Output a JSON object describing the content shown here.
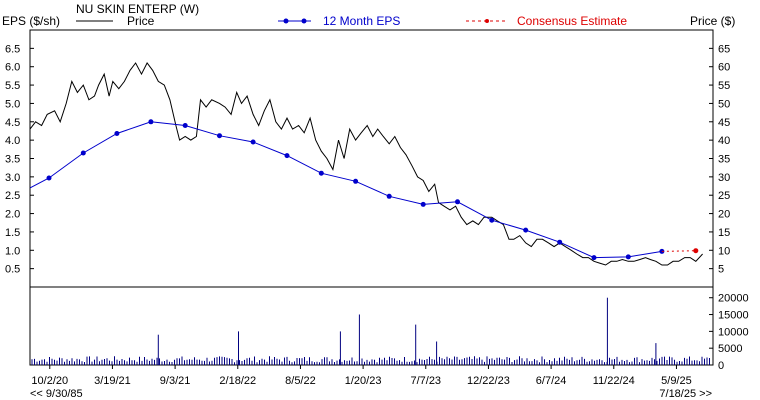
{
  "chart_data": {
    "type": "line",
    "company": "NU SKIN ENTERP (W)",
    "left_axis_title": "EPS ($/sh)",
    "right_axis_title": "Price ($)",
    "legend": {
      "price": "Price",
      "eps": "12 Month EPS",
      "consensus": "Consensus Estimate"
    },
    "colors": {
      "price": "#000000",
      "eps": "#0000cc",
      "consensus": "#dd0000",
      "volume": "#000080",
      "frame": "#000000",
      "consensus_label": "#dd0000"
    },
    "eps_axis": {
      "ticks": [
        0.5,
        1.0,
        1.5,
        2.0,
        2.5,
        3.0,
        3.5,
        4.0,
        4.5,
        5.0,
        5.5,
        6.0,
        6.5
      ],
      "tick_labels": [
        "0.5",
        "1.0",
        "1.5",
        "2.0",
        "2.5",
        "3.0",
        "3.5",
        "4.0",
        "4.5",
        "5.0",
        "5.5",
        "6.0",
        "6.5"
      ],
      "range": [
        0,
        7
      ]
    },
    "price_axis": {
      "ticks": [
        5,
        10,
        15,
        20,
        25,
        30,
        35,
        40,
        45,
        50,
        55,
        60,
        65
      ],
      "tick_labels": [
        "5",
        "10",
        "15",
        "20",
        "25",
        "30",
        "35",
        "40",
        "45",
        "50",
        "55",
        "60",
        "65"
      ],
      "range": [
        0,
        70
      ]
    },
    "volume_axis": {
      "ticks": [
        5000,
        10000,
        15000,
        20000
      ],
      "tick_labels": [
        "5000",
        "10000",
        "15000",
        "20000"
      ],
      "zero_label": "0",
      "range": [
        0,
        22000
      ]
    },
    "x_axis": {
      "range": [
        "2020-08-10",
        "2025-08-15"
      ],
      "ticks": [
        "2020-10-02",
        "2021-03-19",
        "2021-09-03",
        "2022-02-18",
        "2022-08-05",
        "2023-01-20",
        "2023-07-07",
        "2023-12-22",
        "2024-06-07",
        "2024-11-22",
        "2025-05-09"
      ],
      "tick_labels": [
        "10/2/20",
        "3/19/21",
        "9/3/21",
        "2/18/22",
        "8/5/22",
        "1/20/23",
        "7/7/23",
        "12/22/23",
        "6/7/24",
        "11/22/24",
        "5/9/25"
      ],
      "start_note": "<< 9/30/85",
      "end_note": "7/18/25 >>"
    },
    "eps_series": {
      "name": "12 Month EPS",
      "points": [
        [
          "2020-08-10",
          2.7
        ],
        [
          "2020-09-30",
          2.97
        ],
        [
          "2020-12-31",
          3.65
        ],
        [
          "2021-03-31",
          4.18
        ],
        [
          "2021-06-30",
          4.5
        ],
        [
          "2021-09-30",
          4.4
        ],
        [
          "2021-12-31",
          4.12
        ],
        [
          "2022-03-31",
          3.95
        ],
        [
          "2022-06-30",
          3.58
        ],
        [
          "2022-09-30",
          3.1
        ],
        [
          "2022-12-31",
          2.88
        ],
        [
          "2023-03-31",
          2.47
        ],
        [
          "2023-06-30",
          2.25
        ],
        [
          "2023-09-30",
          2.32
        ],
        [
          "2023-12-31",
          1.82
        ],
        [
          "2024-03-31",
          1.55
        ],
        [
          "2024-06-30",
          1.22
        ],
        [
          "2024-09-30",
          0.8
        ],
        [
          "2024-12-31",
          0.82
        ],
        [
          "2025-03-31",
          0.97
        ]
      ]
    },
    "consensus_series": {
      "name": "Consensus Estimate",
      "points": [
        [
          "2025-03-31",
          0.97
        ],
        [
          "2025-06-30",
          0.99
        ]
      ]
    },
    "price_series": {
      "name": "Price",
      "points": [
        [
          "2020-08-10",
          43
        ],
        [
          "2020-08-25",
          45
        ],
        [
          "2020-09-10",
          44
        ],
        [
          "2020-09-25",
          47
        ],
        [
          "2020-10-15",
          48
        ],
        [
          "2020-10-30",
          45
        ],
        [
          "2020-11-15",
          50
        ],
        [
          "2020-11-30",
          56
        ],
        [
          "2020-12-15",
          53
        ],
        [
          "2020-12-31",
          55
        ],
        [
          "2021-01-15",
          51
        ],
        [
          "2021-01-30",
          52
        ],
        [
          "2021-02-10",
          55
        ],
        [
          "2021-02-25",
          58
        ],
        [
          "2021-03-10",
          52
        ],
        [
          "2021-03-20",
          56
        ],
        [
          "2021-04-05",
          54
        ],
        [
          "2021-04-20",
          56
        ],
        [
          "2021-05-05",
          59
        ],
        [
          "2021-05-20",
          61
        ],
        [
          "2021-06-05",
          58
        ],
        [
          "2021-06-20",
          61
        ],
        [
          "2021-07-05",
          59
        ],
        [
          "2021-07-20",
          56
        ],
        [
          "2021-08-05",
          55
        ],
        [
          "2021-08-20",
          51
        ],
        [
          "2021-09-05",
          44
        ],
        [
          "2021-09-15",
          40
        ],
        [
          "2021-09-30",
          41
        ],
        [
          "2021-10-15",
          40
        ],
        [
          "2021-10-30",
          41
        ],
        [
          "2021-11-10",
          51
        ],
        [
          "2021-11-25",
          49
        ],
        [
          "2021-12-10",
          51
        ],
        [
          "2021-12-31",
          50
        ],
        [
          "2022-01-15",
          49
        ],
        [
          "2022-01-31",
          47
        ],
        [
          "2022-02-15",
          53
        ],
        [
          "2022-02-28",
          50
        ],
        [
          "2022-03-15",
          52
        ],
        [
          "2022-03-31",
          47
        ],
        [
          "2022-04-15",
          44
        ],
        [
          "2022-04-30",
          48
        ],
        [
          "2022-05-15",
          51
        ],
        [
          "2022-05-31",
          45
        ],
        [
          "2022-06-15",
          43
        ],
        [
          "2022-06-30",
          46
        ],
        [
          "2022-07-15",
          43
        ],
        [
          "2022-07-31",
          44
        ],
        [
          "2022-08-15",
          42
        ],
        [
          "2022-08-31",
          46
        ],
        [
          "2022-09-15",
          40
        ],
        [
          "2022-09-30",
          37
        ],
        [
          "2022-10-15",
          35
        ],
        [
          "2022-10-31",
          32
        ],
        [
          "2022-11-15",
          40
        ],
        [
          "2022-11-30",
          35
        ],
        [
          "2022-12-15",
          43
        ],
        [
          "2022-12-31",
          40
        ],
        [
          "2023-01-15",
          42
        ],
        [
          "2023-01-31",
          44
        ],
        [
          "2023-02-15",
          41
        ],
        [
          "2023-02-28",
          43
        ],
        [
          "2023-03-15",
          41
        ],
        [
          "2023-03-31",
          39
        ],
        [
          "2023-04-15",
          41
        ],
        [
          "2023-04-30",
          38
        ],
        [
          "2023-05-15",
          36
        ],
        [
          "2023-05-31",
          33
        ],
        [
          "2023-06-15",
          30
        ],
        [
          "2023-06-30",
          29
        ],
        [
          "2023-07-15",
          26
        ],
        [
          "2023-07-31",
          28
        ],
        [
          "2023-08-10",
          23
        ],
        [
          "2023-08-25",
          22
        ],
        [
          "2023-09-10",
          21
        ],
        [
          "2023-09-25",
          22
        ],
        [
          "2023-10-10",
          19
        ],
        [
          "2023-10-25",
          17
        ],
        [
          "2023-11-10",
          18
        ],
        [
          "2023-11-25",
          17
        ],
        [
          "2023-12-10",
          19
        ],
        [
          "2023-12-31",
          19
        ],
        [
          "2024-01-15",
          18
        ],
        [
          "2024-01-31",
          17
        ],
        [
          "2024-02-15",
          13
        ],
        [
          "2024-02-28",
          13
        ],
        [
          "2024-03-15",
          14
        ],
        [
          "2024-03-31",
          12
        ],
        [
          "2024-04-15",
          11
        ],
        [
          "2024-04-30",
          13
        ],
        [
          "2024-05-15",
          13
        ],
        [
          "2024-05-31",
          12
        ],
        [
          "2024-06-15",
          11
        ],
        [
          "2024-06-30",
          12
        ],
        [
          "2024-07-15",
          11
        ],
        [
          "2024-07-31",
          10
        ],
        [
          "2024-08-15",
          9
        ],
        [
          "2024-08-31",
          8
        ],
        [
          "2024-09-15",
          8
        ],
        [
          "2024-09-30",
          7
        ],
        [
          "2024-10-15",
          6.5
        ],
        [
          "2024-10-31",
          6
        ],
        [
          "2024-11-15",
          7
        ],
        [
          "2024-11-30",
          7
        ],
        [
          "2024-12-15",
          7.5
        ],
        [
          "2024-12-31",
          7
        ],
        [
          "2025-01-15",
          7
        ],
        [
          "2025-01-31",
          7.5
        ],
        [
          "2025-02-15",
          8
        ],
        [
          "2025-02-28",
          7.5
        ],
        [
          "2025-03-15",
          7
        ],
        [
          "2025-03-31",
          6
        ],
        [
          "2025-04-15",
          6
        ],
        [
          "2025-04-30",
          7
        ],
        [
          "2025-05-15",
          7
        ],
        [
          "2025-05-31",
          8
        ],
        [
          "2025-06-15",
          8
        ],
        [
          "2025-06-30",
          7
        ],
        [
          "2025-07-18",
          9
        ]
      ]
    },
    "volume_spikes": [
      [
        "2021-07-20",
        9000
      ],
      [
        "2022-02-20",
        10000
      ],
      [
        "2022-11-20",
        10000
      ],
      [
        "2023-01-10",
        15000
      ],
      [
        "2023-06-10",
        12000
      ],
      [
        "2023-08-05",
        7000
      ],
      [
        "2024-11-05",
        20000
      ],
      [
        "2025-03-15",
        6500
      ]
    ]
  }
}
